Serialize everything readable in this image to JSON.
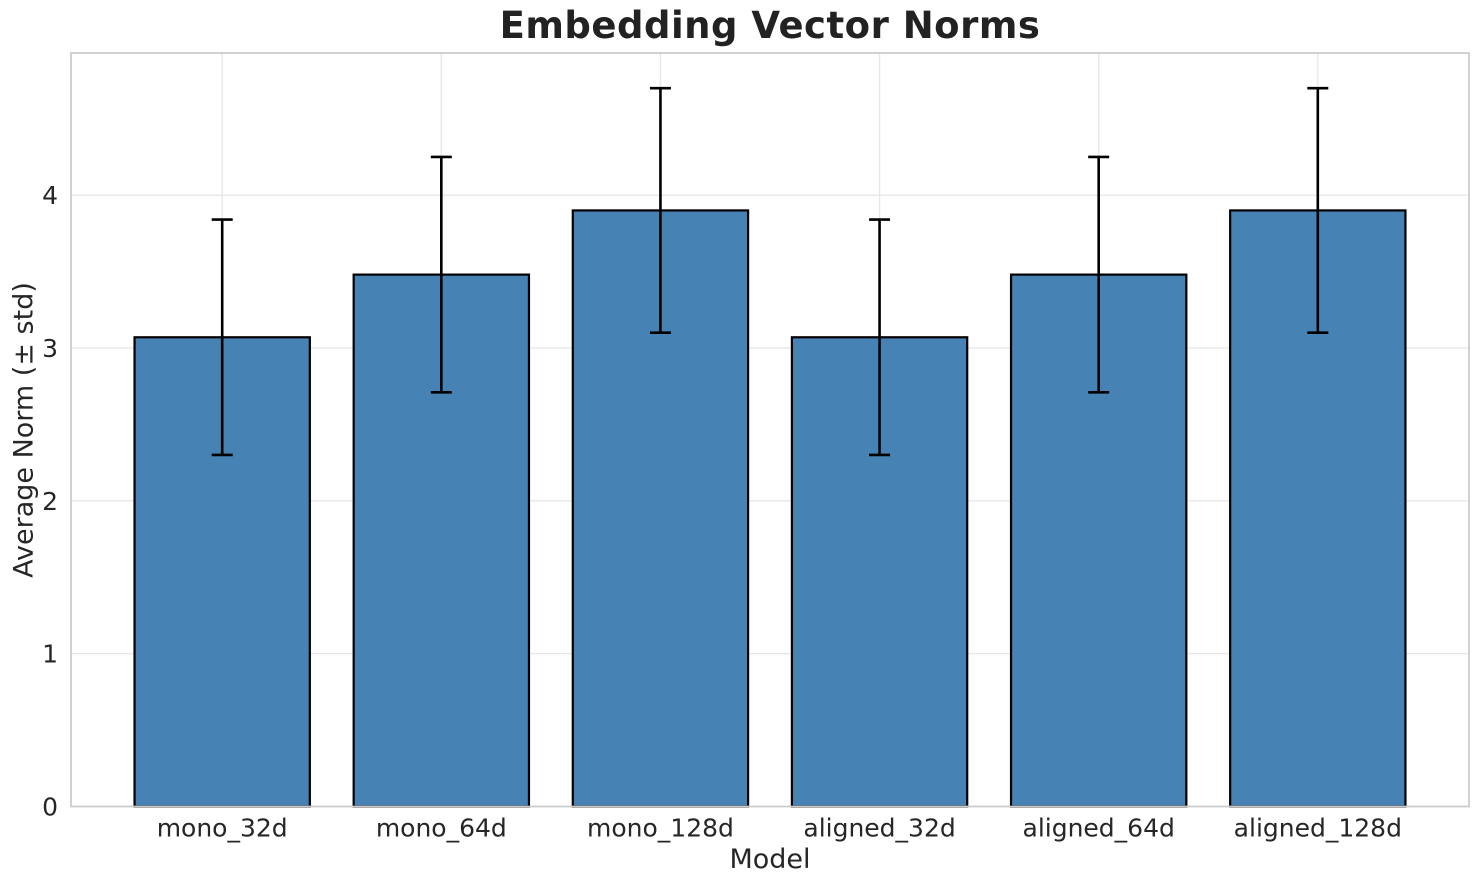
{
  "chart_data": {
    "type": "bar",
    "title": "Embedding Vector Norms",
    "xlabel": "Model",
    "ylabel": "Average Norm (± std)",
    "categories": [
      "mono_32d",
      "mono_64d",
      "mono_128d",
      "aligned_32d",
      "aligned_64d",
      "aligned_128d"
    ],
    "series": [
      {
        "name": "Average Norm",
        "values": [
          3.07,
          3.48,
          3.9,
          3.07,
          3.48,
          3.9
        ],
        "errors": [
          0.77,
          0.77,
          0.8,
          0.77,
          0.77,
          0.8
        ]
      }
    ],
    "ylim": [
      0,
      4.93
    ],
    "yticks": [
      0,
      1,
      2,
      3,
      4
    ],
    "grid": "on",
    "legend": "none",
    "bar_color": "#4682b4",
    "bar_edge_color": "#000000",
    "error_bar_color": "#000000",
    "grid_color": "#e7e7e7",
    "spine_color": "#c9c9c9",
    "text_color": "#262626"
  }
}
